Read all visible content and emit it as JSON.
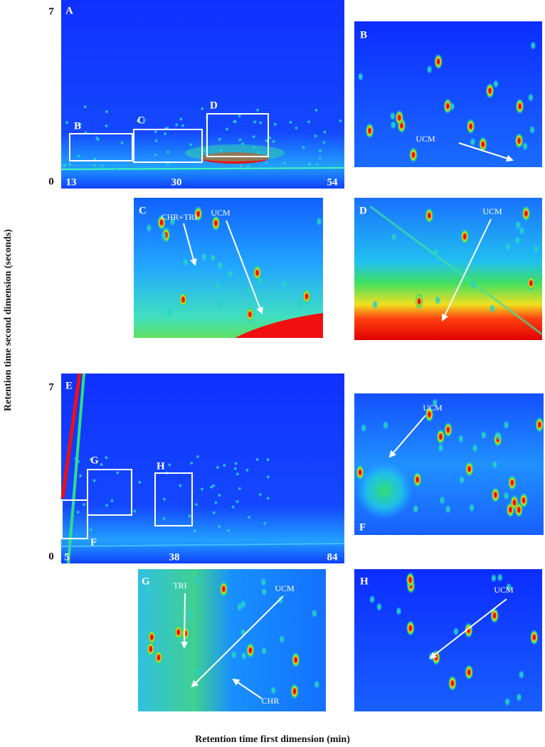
{
  "figure": {
    "y_axis_label": "Retention time second dimension (seconds)",
    "x_axis_label": "Retention time first dimension (min)",
    "panels": [
      {
        "label": "A",
        "yticks": [
          7,
          0
        ],
        "xticks": [
          13,
          30,
          54
        ],
        "boxes": [
          "B",
          "C",
          "D"
        ]
      },
      {
        "label": "B",
        "annotations": [
          "UCM"
        ]
      },
      {
        "label": "C",
        "annotations": [
          "CHR+TRI",
          "UCM"
        ]
      },
      {
        "label": "D",
        "annotations": [
          "UCM"
        ]
      },
      {
        "label": "E",
        "yticks": [
          7,
          0
        ],
        "xticks": [
          5,
          38,
          84
        ],
        "boxes": [
          "G",
          "H",
          "F"
        ]
      },
      {
        "label": "F",
        "annotations": [
          "UCM"
        ]
      },
      {
        "label": "G",
        "annotations": [
          "TRI",
          "UCM",
          "CHR"
        ]
      },
      {
        "label": "H",
        "annotations": [
          "UCM"
        ]
      }
    ]
  }
}
